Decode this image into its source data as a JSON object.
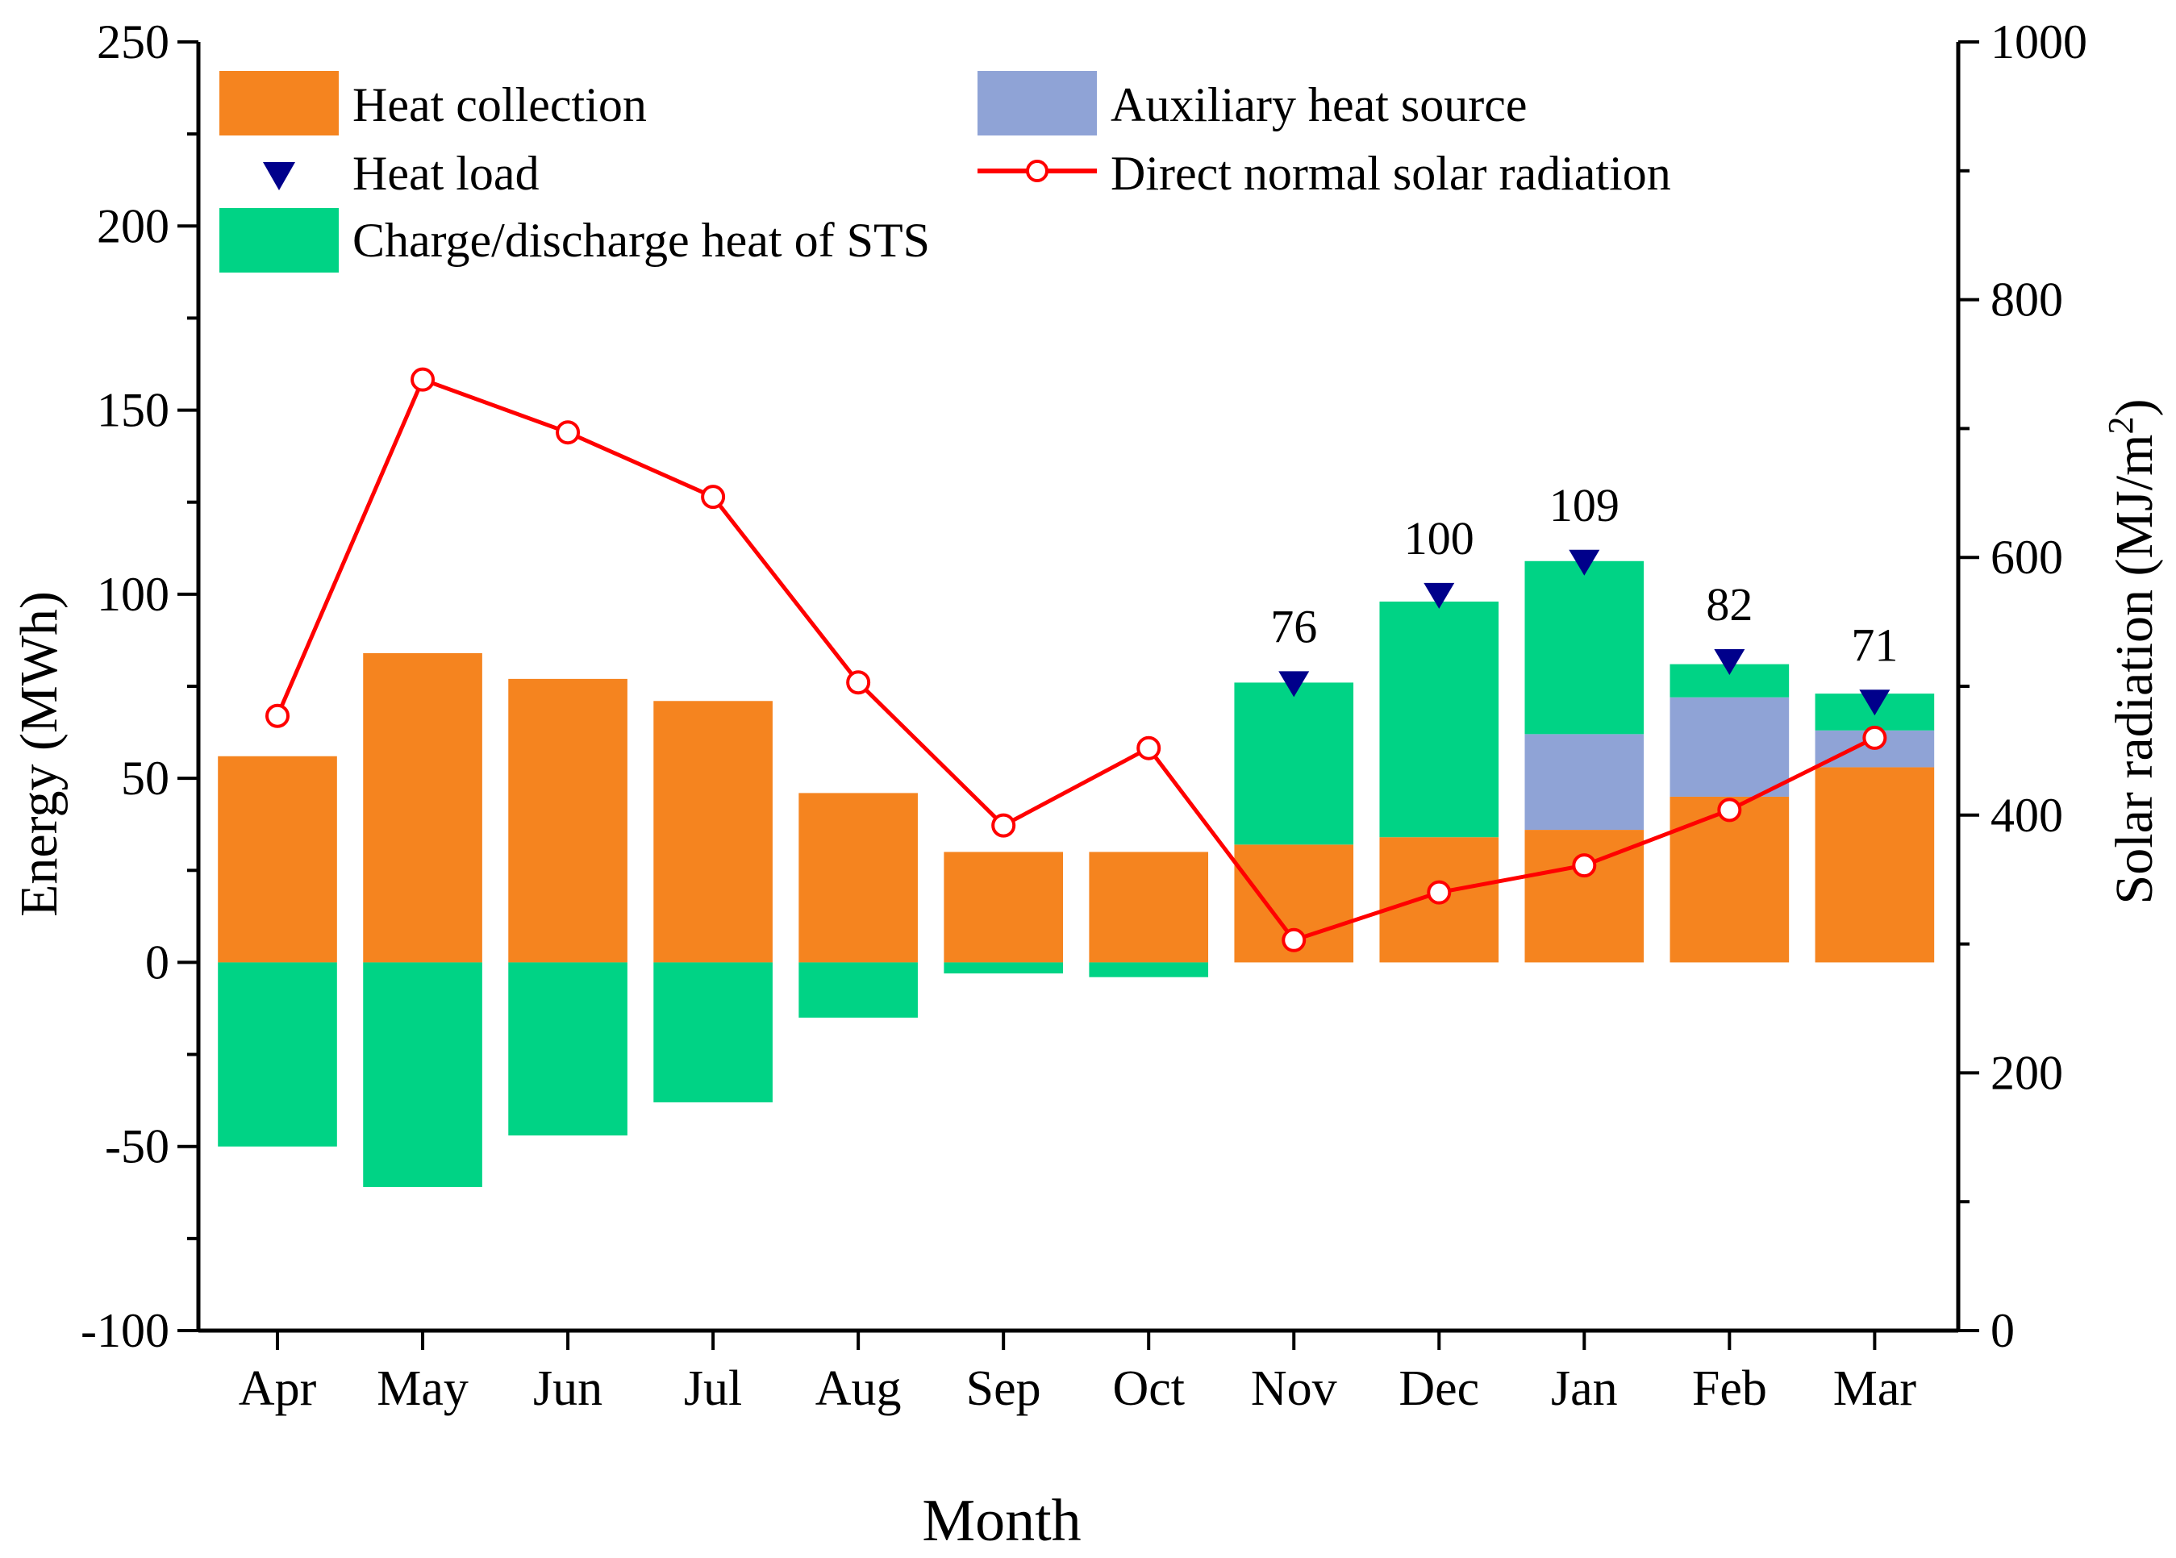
{
  "chart_data": {
    "type": "bar",
    "xlabel": "Month",
    "ylabel_left": "Energy (MWh)",
    "ylabel_right_main": "Solar radiation (MJ/m",
    "ylabel_right_sup": "2",
    "ylabel_right_tail": ")",
    "ylim_left": [
      -100,
      250
    ],
    "ylim_right": [
      0,
      1000
    ],
    "yticks_left": [
      -100,
      -50,
      0,
      50,
      100,
      150,
      200,
      250
    ],
    "yticks_right": [
      0,
      200,
      400,
      600,
      800,
      1000
    ],
    "categories": [
      "Apr",
      "May",
      "Jun",
      "Jul",
      "Aug",
      "Sep",
      "Oct",
      "Nov",
      "Dec",
      "Jan",
      "Feb",
      "Mar"
    ],
    "series": [
      {
        "name": "Heat collection",
        "color": "#f5841f",
        "values": [
          56,
          84,
          77,
          71,
          46,
          30,
          30,
          32,
          34,
          36,
          45,
          53
        ]
      },
      {
        "name": "Auxiliary heat source",
        "color": "#8fa3d6",
        "values": [
          0,
          0,
          0,
          0,
          0,
          0,
          0,
          0,
          0,
          26,
          27,
          10
        ]
      },
      {
        "name": "Charge/discharge heat of STS",
        "color": "#00d385",
        "values": [
          -50,
          -61,
          -47,
          -38,
          -15,
          -3,
          -4,
          44,
          64,
          47,
          9,
          10
        ]
      },
      {
        "name": "Heat load",
        "color": "#00008b",
        "values": [
          null,
          null,
          null,
          null,
          null,
          null,
          null,
          76,
          100,
          109,
          82,
          71
        ]
      },
      {
        "name": "Direct normal solar radiation",
        "color": "#ff0000",
        "axis": "right",
        "values": [
          477,
          738,
          697,
          647,
          503,
          392,
          452,
          303,
          340,
          361,
          404,
          460
        ]
      }
    ],
    "data_labels": [
      "76",
      "100",
      "109",
      "82",
      "71"
    ],
    "legend": [
      {
        "label": "Heat collection"
      },
      {
        "label": "Auxiliary heat source"
      },
      {
        "label": "Heat load"
      },
      {
        "label": "Direct normal solar radiation"
      },
      {
        "label": "Charge/discharge heat of STS"
      }
    ],
    "legend_position": "top-left",
    "grid": false
  }
}
